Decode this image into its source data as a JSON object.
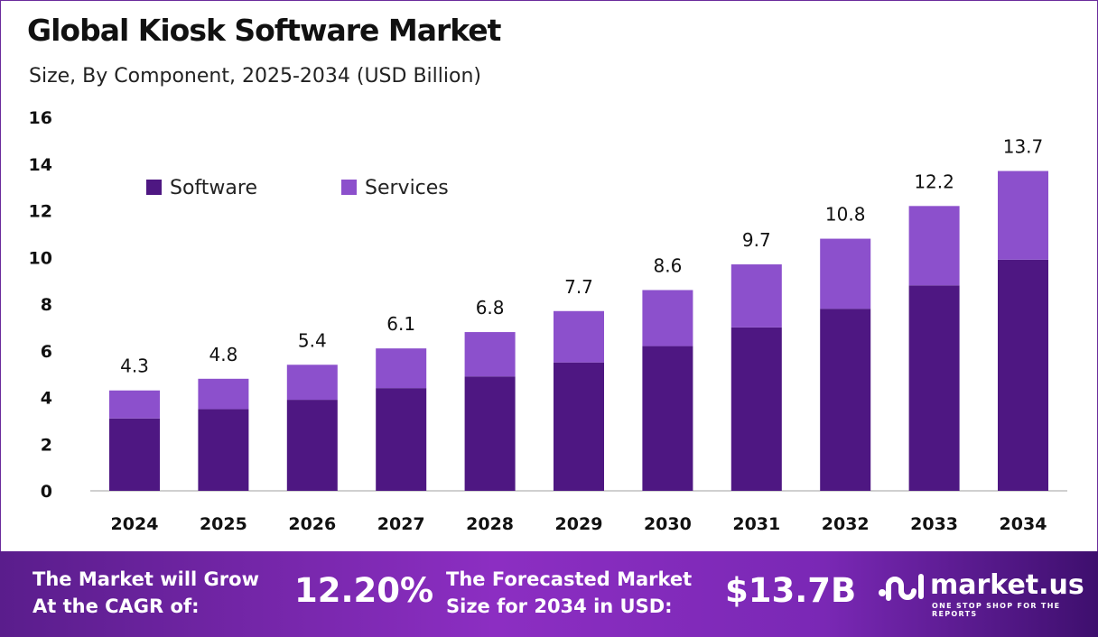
{
  "chart_data": {
    "type": "bar",
    "stacked": true,
    "title": "Global Kiosk Software Market",
    "subtitle": "Size, By Component, 2025-2034 (USD Billion)",
    "categories": [
      "2024",
      "2025",
      "2026",
      "2027",
      "2028",
      "2029",
      "2030",
      "2031",
      "2032",
      "2033",
      "2034"
    ],
    "series": [
      {
        "name": "Software",
        "color": "#4e1782",
        "values": [
          3.1,
          3.5,
          3.9,
          4.4,
          4.9,
          5.5,
          6.2,
          7.0,
          7.8,
          8.8,
          9.9
        ]
      },
      {
        "name": "Services",
        "color": "#8c50cc",
        "values": [
          1.2,
          1.3,
          1.5,
          1.7,
          1.9,
          2.2,
          2.4,
          2.7,
          3.0,
          3.4,
          3.8
        ]
      }
    ],
    "totals": [
      "4.3",
      "4.8",
      "5.4",
      "6.1",
      "6.8",
      "7.7",
      "8.6",
      "9.7",
      "10.8",
      "12.2",
      "13.7"
    ],
    "ylim": [
      0,
      16
    ],
    "yticks": [
      "0",
      "2",
      "4",
      "6",
      "8",
      "10",
      "12",
      "14",
      "16"
    ],
    "legend_position": "top-left",
    "grid": false
  },
  "footer": {
    "cagr_label_line1": "The Market will Grow",
    "cagr_label_line2": "At the CAGR of:",
    "cagr_value": "12.20%",
    "forecast_label_line1": "The Forecasted Market",
    "forecast_label_line2": "Size for 2034 in USD:",
    "forecast_value": "$13.7B",
    "brand": "market.us",
    "tagline": "ONE STOP SHOP FOR THE REPORTS"
  }
}
